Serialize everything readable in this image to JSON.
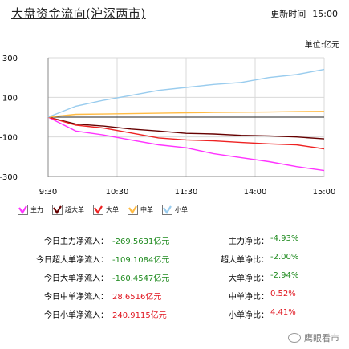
{
  "header": {
    "title": "大盘资金流向(沪深两市)",
    "update_label": "更新时间",
    "update_time": "15:00"
  },
  "unit_label": "单位:亿元",
  "chart_data": {
    "type": "line",
    "x_labels": [
      "9:30",
      "10:30",
      "11:30",
      "14:00",
      "15:00"
    ],
    "y_ticks": [
      300,
      100,
      -100,
      -300
    ],
    "ylim": [
      -300,
      300
    ],
    "grid": true,
    "zero_line": true,
    "series": [
      {
        "name": "主力",
        "color": "#ff33ff",
        "values": [
          0,
          -70,
          -90,
          -115,
          -140,
          -155,
          -185,
          -205,
          -225,
          -250,
          -270
        ]
      },
      {
        "name": "超大单",
        "color": "#660000",
        "values": [
          0,
          -35,
          -45,
          -60,
          -70,
          -82,
          -85,
          -92,
          -95,
          -100,
          -110
        ]
      },
      {
        "name": "大单",
        "color": "#ee2222",
        "values": [
          0,
          -40,
          -55,
          -80,
          -105,
          -115,
          -120,
          -128,
          -135,
          -140,
          -160
        ]
      },
      {
        "name": "中单",
        "color": "#ffbb44",
        "values": [
          0,
          14,
          16,
          18,
          20,
          22,
          24,
          25,
          26,
          28,
          29
        ]
      },
      {
        "name": "小单",
        "color": "#99ccee",
        "values": [
          0,
          55,
          85,
          110,
          135,
          150,
          165,
          175,
          200,
          215,
          241
        ]
      }
    ]
  },
  "legend": [
    {
      "label": "主力",
      "color": "#ff33ff"
    },
    {
      "label": "超大单",
      "color": "#660000"
    },
    {
      "label": "大单",
      "color": "#ee2222"
    },
    {
      "label": "中单",
      "color": "#ffbb44"
    },
    {
      "label": "小单",
      "color": "#99ccee"
    }
  ],
  "stats": [
    {
      "label": "今日主力净流入：",
      "value": "-269.5631亿元",
      "ratio_label": "主力净比：",
      "ratio_value": "-4.93%"
    },
    {
      "label": "今日超大单净流入：",
      "value": "-109.1084亿元",
      "ratio_label": "超大单净比：",
      "ratio_value": "-2.00%"
    },
    {
      "label": "今日大单净流入：",
      "value": "-160.4547亿元",
      "ratio_label": "大单净比：",
      "ratio_value": "-2.94%"
    },
    {
      "label": "今日中单净流入：",
      "value": "28.6516亿元",
      "ratio_label": "中单净比：",
      "ratio_value": "0.52%"
    },
    {
      "label": "今日小单净流入：",
      "value": "240.9115亿元",
      "ratio_label": "小单净比：",
      "ratio_value": "4.41%"
    }
  ],
  "watermark": "鹰眼看市",
  "colors": {
    "positive": "#e0141e",
    "negative": "#1e8a1e"
  }
}
